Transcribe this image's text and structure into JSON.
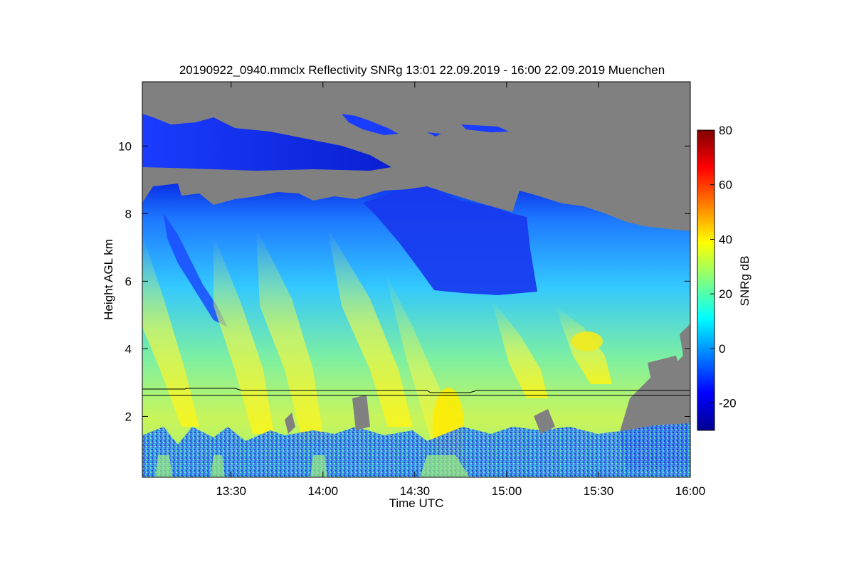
{
  "chart_data": {
    "type": "heatmap",
    "title": "20190922_0940.mmclx Reflectivity SNRg   13:01 22.09.2019 - 16:00 22.09.2019 Muenchen",
    "xlabel": "Time UTC",
    "ylabel": "Height AGL km",
    "xlim": [
      "13:01",
      "16:00"
    ],
    "ylim": [
      0.2,
      11.9
    ],
    "x_ticks": [
      {
        "value": "13:30",
        "label": "13:30"
      },
      {
        "value": "14:00",
        "label": "14:00"
      },
      {
        "value": "14:30",
        "label": "14:30"
      },
      {
        "value": "15:00",
        "label": "15:00"
      },
      {
        "value": "15:30",
        "label": "15:30"
      },
      {
        "value": "16:00",
        "label": "16:00"
      }
    ],
    "y_ticks": [
      {
        "value": 2,
        "label": "2"
      },
      {
        "value": 4,
        "label": "4"
      },
      {
        "value": 6,
        "label": "6"
      },
      {
        "value": 8,
        "label": "8"
      },
      {
        "value": 10,
        "label": "10"
      }
    ],
    "colorbar": {
      "label": "SNRg dB",
      "range": [
        -30,
        80
      ],
      "ticks": [
        {
          "value": -20,
          "label": "-20"
        },
        {
          "value": 0,
          "label": "0"
        },
        {
          "value": 20,
          "label": "20"
        },
        {
          "value": 40,
          "label": "40"
        },
        {
          "value": 60,
          "label": "60"
        },
        {
          "value": 80,
          "label": "80"
        }
      ],
      "colors": [
        "#00008f",
        "#0000ff",
        "#0080ff",
        "#00ffff",
        "#80ff80",
        "#ffff00",
        "#ff8000",
        "#ff0000",
        "#800000"
      ]
    },
    "background_color": "#808080",
    "features": {
      "cirrus_layer_km": [
        9.5,
        11.0
      ],
      "cloud_top_km": 8.5,
      "melting_layer_km": [
        2.65,
        2.8
      ],
      "max_reflectivity_dbz": 40
    },
    "grid": false,
    "legend": "none"
  }
}
